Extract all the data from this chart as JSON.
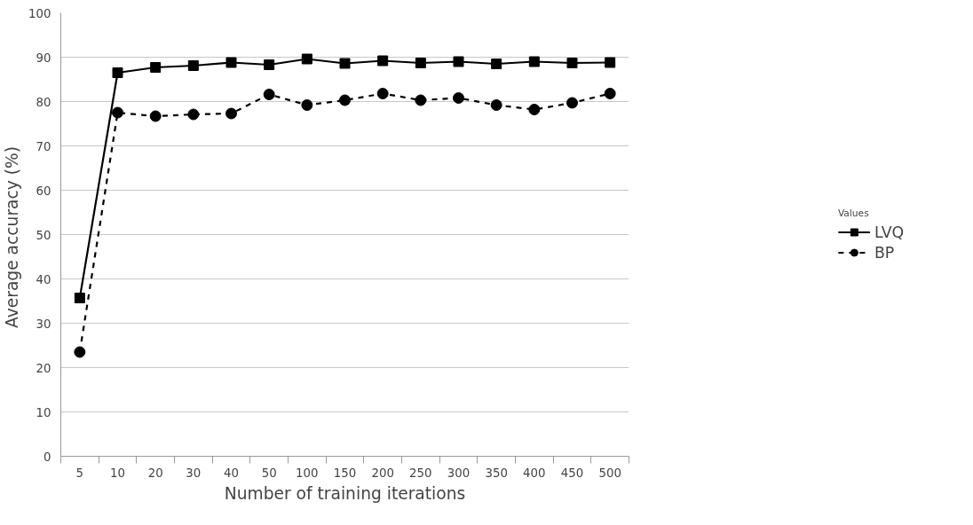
{
  "chart_data": {
    "type": "line",
    "xlabel": "Number of training iterations",
    "ylabel": "Average accuracy  (%)",
    "legend_title": "Values",
    "legend": "right",
    "grid": "y",
    "categories": [
      "5",
      "10",
      "20",
      "30",
      "40",
      "50",
      "100",
      "150",
      "200",
      "250",
      "300",
      "350",
      "400",
      "450",
      "500"
    ],
    "ylim": [
      0,
      100
    ],
    "yticks": [
      0,
      10,
      20,
      30,
      40,
      50,
      60,
      70,
      80,
      90,
      100
    ],
    "series": [
      {
        "name": "LVQ",
        "color": "#000000",
        "marker": "square",
        "line_style": "solid",
        "values": [
          35.7,
          86.5,
          87.7,
          88.1,
          88.8,
          88.3,
          89.6,
          88.6,
          89.2,
          88.7,
          89.0,
          88.5,
          89.0,
          88.7,
          88.8
        ]
      },
      {
        "name": "BP",
        "color": "#000000",
        "marker": "circle",
        "line_style": "dashed",
        "values": [
          23.5,
          77.5,
          76.7,
          77.1,
          77.3,
          81.6,
          79.2,
          80.3,
          81.8,
          80.3,
          80.8,
          79.2,
          78.2,
          79.7,
          81.8
        ]
      }
    ]
  }
}
